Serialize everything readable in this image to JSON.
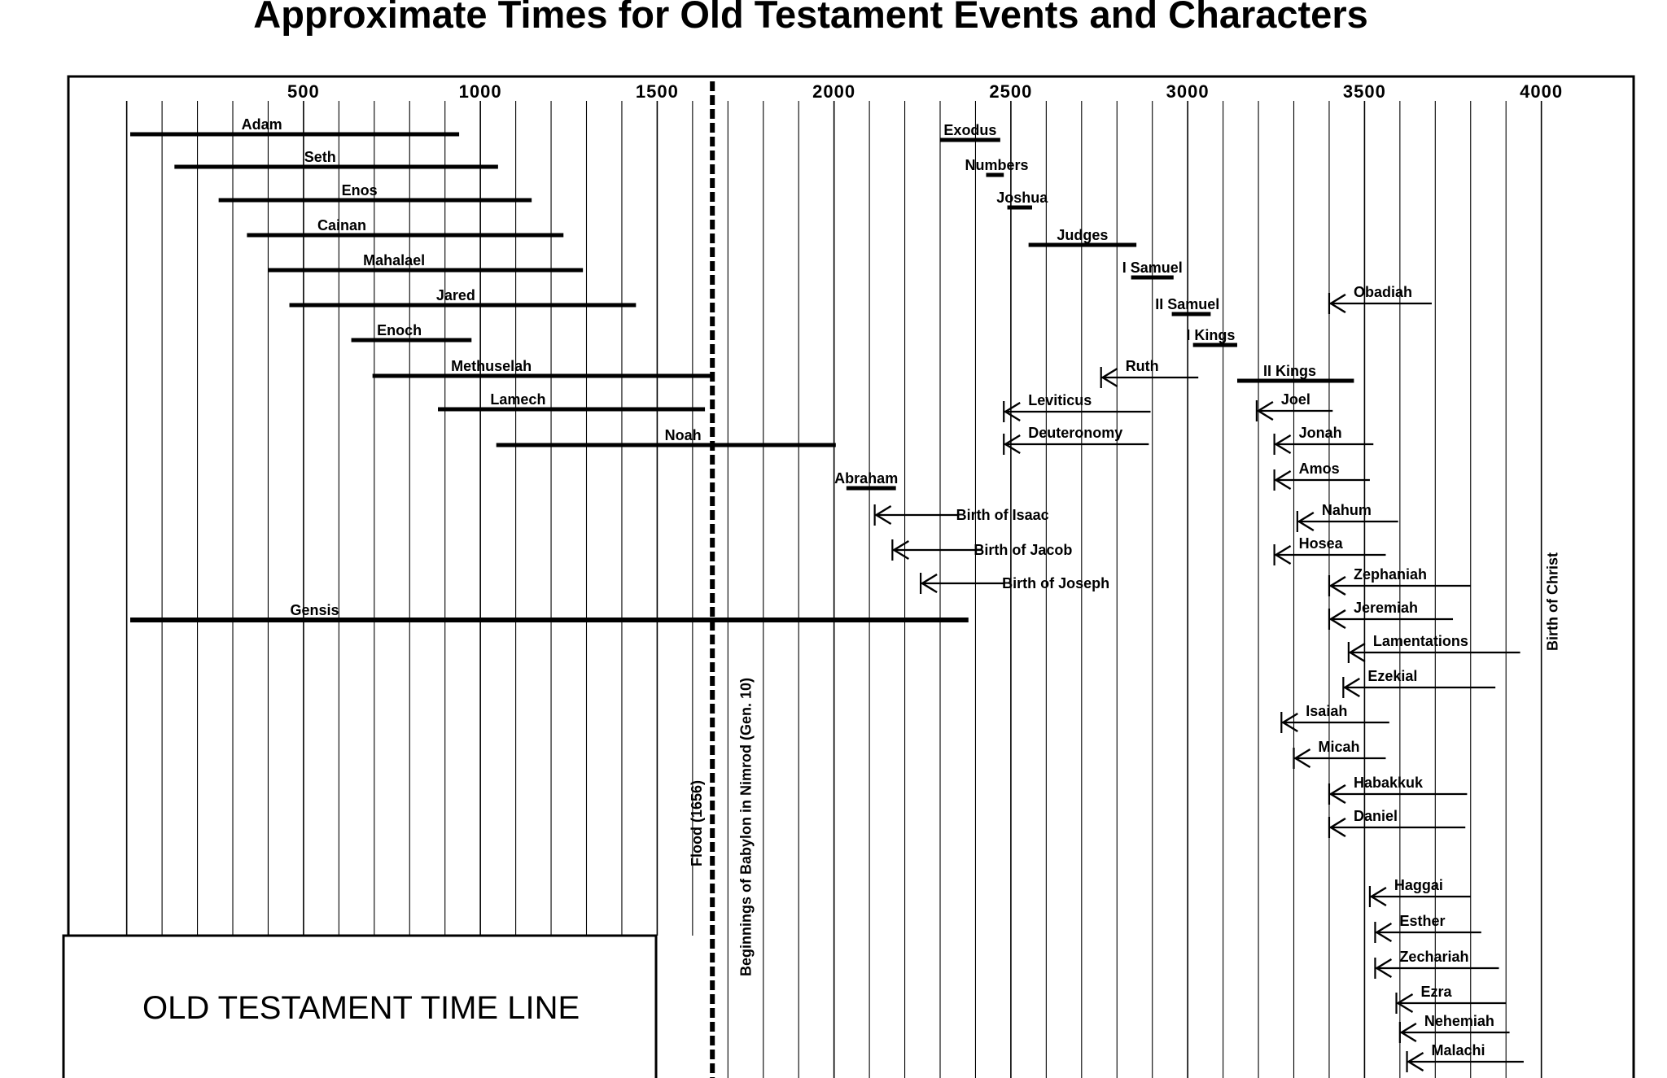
{
  "chart_data": {
    "type": "timeline",
    "title": "Approximate Times for Old Testament Events and Characters",
    "box_label": "OLD TESTAMENT TIME LINE",
    "xlim": [
      -180,
      4100
    ],
    "x_ticks": [
      {
        "value": 500,
        "label": "500"
      },
      {
        "value": 1000,
        "label": "1000"
      },
      {
        "value": 1500,
        "label": "1500"
      },
      {
        "value": 2000,
        "label": "2000"
      },
      {
        "value": 2500,
        "label": "2500"
      },
      {
        "value": 3000,
        "label": "3000"
      },
      {
        "value": 3500,
        "label": "3500"
      },
      {
        "value": 4000,
        "label": "4000"
      }
    ],
    "bars": [
      {
        "label": "Adam",
        "start": 10,
        "end": 940
      },
      {
        "label": "Seth",
        "start": 135,
        "end": 1050
      },
      {
        "label": "Enos",
        "start": 260,
        "end": 1145
      },
      {
        "label": "Cainan",
        "start": 340,
        "end": 1235
      },
      {
        "label": "Mahalael",
        "start": 400,
        "end": 1290
      },
      {
        "label": "Jared",
        "start": 460,
        "end": 1440
      },
      {
        "label": "Enoch",
        "start": 635,
        "end": 975
      },
      {
        "label": "Methuselah",
        "start": 695,
        "end": 1655
      },
      {
        "label": "Lamech",
        "start": 880,
        "end": 1635
      },
      {
        "label": "Noah",
        "start": 1045,
        "end": 2005
      },
      {
        "label": "Abraham",
        "start": 2035,
        "end": 2175
      },
      {
        "label": "Gensis",
        "start": 10,
        "end": 2380
      },
      {
        "label": "Exodus",
        "start": 2300,
        "end": 2470
      },
      {
        "label": "Numbers",
        "start": 2430,
        "end": 2480
      },
      {
        "label": "Joshua",
        "start": 2490,
        "end": 2560
      },
      {
        "label": "Judges",
        "start": 2550,
        "end": 2855
      },
      {
        "label": "I Samuel",
        "start": 2840,
        "end": 2960
      },
      {
        "label": "II Samuel",
        "start": 2955,
        "end": 3065
      },
      {
        "label": "I Kings",
        "start": 3015,
        "end": 3140
      },
      {
        "label": "II Kings",
        "start": 3140,
        "end": 3470
      }
    ],
    "arrows": [
      {
        "label": "Birth of Isaac",
        "at": 2115,
        "to": 2350
      },
      {
        "label": "Birth of Jacob",
        "at": 2165,
        "to": 2420
      },
      {
        "label": "Birth of Joseph",
        "at": 2245,
        "to": 2480
      },
      {
        "label": "Ruth",
        "at": 2755,
        "to": 3030
      },
      {
        "label": "Leviticus",
        "at": 2480,
        "to": 2895
      },
      {
        "label": "Deuteronomy",
        "at": 2480,
        "to": 2890
      },
      {
        "label": "Obadiah",
        "at": 3400,
        "to": 3690
      },
      {
        "label": "Joel",
        "at": 3195,
        "to": 3410
      },
      {
        "label": "Jonah",
        "at": 3245,
        "to": 3525
      },
      {
        "label": "Amos",
        "at": 3245,
        "to": 3515
      },
      {
        "label": "Nahum",
        "at": 3310,
        "to": 3595
      },
      {
        "label": "Hosea",
        "at": 3245,
        "to": 3560
      },
      {
        "label": "Zephaniah",
        "at": 3400,
        "to": 3800
      },
      {
        "label": "Jeremiah",
        "at": 3400,
        "to": 3750
      },
      {
        "label": "Lamentations",
        "at": 3455,
        "to": 3940
      },
      {
        "label": "Ezekial",
        "at": 3440,
        "to": 3870
      },
      {
        "label": "Isaiah",
        "at": 3265,
        "to": 3570
      },
      {
        "label": "Micah",
        "at": 3300,
        "to": 3560
      },
      {
        "label": "Habakkuk",
        "at": 3400,
        "to": 3790
      },
      {
        "label": "Daniel",
        "at": 3400,
        "to": 3785
      },
      {
        "label": "Haggai",
        "at": 3515,
        "to": 3800
      },
      {
        "label": "Esther",
        "at": 3530,
        "to": 3830
      },
      {
        "label": "Zechariah",
        "at": 3530,
        "to": 3880
      },
      {
        "label": "Ezra",
        "at": 3590,
        "to": 3900
      },
      {
        "label": "Nehemiah",
        "at": 3600,
        "to": 3910
      },
      {
        "label": "Malachi",
        "at": 3620,
        "to": 3950
      }
    ],
    "vertical_markers": [
      {
        "label": "Flood (1656)",
        "value": 1656,
        "style": "dashed"
      },
      {
        "label": "Beginnings of Babylon in Nimrod (Gen. 10)",
        "value": 1710,
        "style": "plain"
      },
      {
        "label": "Birth of Christ",
        "value": 4000,
        "style": "plain"
      }
    ]
  }
}
